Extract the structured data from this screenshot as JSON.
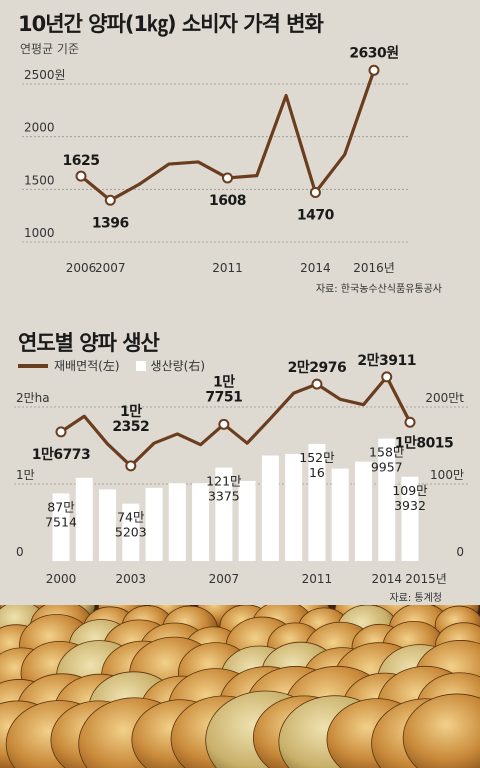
{
  "chart1": {
    "title": "10년간 양파(1㎏) 소비자 가격 변화",
    "subtitle": "연평균 기준",
    "source": "자료: 한국농수산식품유통공사"
  },
  "chart2": {
    "title": "연도별 양파 생산",
    "legend_area": "재배면적(左)",
    "legend_prod": "생산량(右)",
    "source": "자료: 통계청"
  },
  "colors": {
    "line": "#6b3d1f",
    "bar": "#ffffff",
    "background": "#dedad2",
    "grid": "#9a958c"
  },
  "photo": {
    "icon": "onion-pile-image"
  },
  "chart_data": [
    {
      "type": "line",
      "title": "10년간 양파(1㎏) 소비자 가격 변화",
      "subtitle": "연평균 기준",
      "x": [
        2006,
        2007,
        2008,
        2009,
        2010,
        2011,
        2012,
        2013,
        2014,
        2015,
        2016
      ],
      "series": [
        {
          "values": [
            1625,
            1396,
            1550,
            1740,
            1760,
            1608,
            1630,
            2390,
            1470,
            1830,
            2630
          ]
        }
      ],
      "point_labels": [
        {
          "x": 2006,
          "text": "1625"
        },
        {
          "x": 2007,
          "text": "1396"
        },
        {
          "x": 2011,
          "text": "1608"
        },
        {
          "x": 2014,
          "text": "1470"
        },
        {
          "x": 2016,
          "text": "2630원"
        }
      ],
      "ylim": [
        1000,
        2500
      ],
      "y_ticks": [
        {
          "value": 1000,
          "label": "1000"
        },
        {
          "value": 1500,
          "label": "1500"
        },
        {
          "value": 2000,
          "label": "2000"
        },
        {
          "value": 2500,
          "label": "2500원"
        }
      ],
      "x_ticks": [
        {
          "value": 2006,
          "label": "2006"
        },
        {
          "value": 2007,
          "label": "2007"
        },
        {
          "value": 2011,
          "label": "2011"
        },
        {
          "value": 2014,
          "label": "2014"
        },
        {
          "value": 2016,
          "label": "2016년"
        }
      ],
      "grid": true
    },
    {
      "type": "bar",
      "title": "연도별 양파 생산",
      "x": [
        2000,
        2001,
        2002,
        2003,
        2004,
        2005,
        2006,
        2007,
        2008,
        2009,
        2010,
        2011,
        2012,
        2013,
        2014,
        2015
      ],
      "series": [
        {
          "name": "재배면적(左)",
          "type": "line",
          "unit": "ha",
          "values": [
            16773,
            18800,
            15200,
            12352,
            15300,
            16500,
            15100,
            17751,
            15300,
            18500,
            21800,
            22976,
            21000,
            20300,
            23911,
            18015
          ]
        },
        {
          "name": "생산량(右)",
          "type": "bar",
          "unit": "t",
          "values": [
            877514,
            1080000,
            930000,
            745203,
            950000,
            1010000,
            1010000,
            1213375,
            1040000,
            1370000,
            1390000,
            1520016,
            1200000,
            1290000,
            1589957,
            1093932
          ]
        }
      ],
      "point_labels": [
        {
          "x": 2000,
          "series": "area",
          "text": "1만6773"
        },
        {
          "x": 2003,
          "series": "area",
          "text": "1만 2352"
        },
        {
          "x": 2007,
          "series": "area",
          "text": "1만 7751"
        },
        {
          "x": 2011,
          "series": "area",
          "text": "2만2976"
        },
        {
          "x": 2014,
          "series": "area",
          "text": "2만3911"
        },
        {
          "x": 2015,
          "series": "area",
          "text": "1만8015"
        },
        {
          "x": 2000,
          "series": "prod",
          "text": "87만 7514"
        },
        {
          "x": 2003,
          "series": "prod",
          "text": "74만 5203"
        },
        {
          "x": 2007,
          "series": "prod",
          "text": "121만 3375"
        },
        {
          "x": 2011,
          "series": "prod",
          "text": "152만 16"
        },
        {
          "x": 2014,
          "series": "prod",
          "text": "158만 9957"
        },
        {
          "x": 2015,
          "series": "prod",
          "text": "109만 3932"
        }
      ],
      "y_left": {
        "ylim": [
          0,
          20000
        ],
        "ticks": [
          {
            "value": 0,
            "label": "0"
          },
          {
            "value": 10000,
            "label": "1만"
          },
          {
            "value": 20000,
            "label": "2만ha"
          }
        ]
      },
      "y_right": {
        "ylim": [
          0,
          2000000
        ],
        "ticks": [
          {
            "value": 0,
            "label": "0"
          },
          {
            "value": 1000000,
            "label": "100만"
          },
          {
            "value": 2000000,
            "label": "200만t"
          }
        ]
      },
      "x_ticks": [
        {
          "value": 2000,
          "label": "2000"
        },
        {
          "value": 2003,
          "label": "2003"
        },
        {
          "value": 2007,
          "label": "2007"
        },
        {
          "value": 2011,
          "label": "2011"
        },
        {
          "value": 2014,
          "label": "2014"
        },
        {
          "value": 2015,
          "label": "2015년"
        }
      ],
      "grid": true
    }
  ]
}
